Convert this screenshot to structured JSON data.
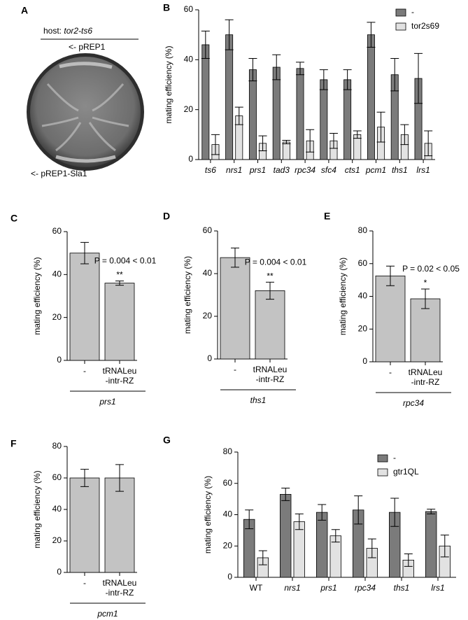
{
  "panel_a": {
    "label": "A",
    "host": "host:",
    "strain": "tor2-ts6",
    "top_label": "<- pREP1",
    "bottom_label": "<- pREP1-Sla1"
  },
  "chart_data": [
    {
      "type": "bar",
      "label": "B",
      "ylabel": "mating efficiency (%)",
      "categories": [
        "ts6",
        "nrs1",
        "prs1",
        "tad3",
        "rpc34",
        "sfc4",
        "cts1",
        "pcm1",
        "ths1",
        "lrs1"
      ],
      "category_italic": [
        true,
        true,
        true,
        true,
        true,
        true,
        true,
        true,
        true,
        true
      ],
      "series": [
        {
          "name": "-",
          "color": "#7b7b7b",
          "values": [
            46,
            50,
            36,
            37,
            36.5,
            32,
            32,
            50,
            34,
            32.5
          ],
          "errors": [
            5.5,
            6,
            4.5,
            5,
            2.5,
            4,
            4,
            5,
            6.5,
            10
          ]
        },
        {
          "name": "tor2s69",
          "color": "#e2e2e2",
          "values": [
            6,
            17.5,
            6.5,
            7,
            7.5,
            7.5,
            10,
            13,
            10,
            6.5
          ],
          "errors": [
            4,
            3.5,
            3,
            0.7,
            4.5,
            3,
            1.5,
            6,
            4,
            5
          ]
        }
      ],
      "ylim": [
        0,
        60
      ],
      "yticks": [
        0,
        20,
        40,
        60
      ],
      "legend": "upper right"
    },
    {
      "type": "bar",
      "label": "C",
      "ylabel": "mating efficiency (%)",
      "categories": [
        "-",
        "tRNALeu\n-intr-RZ"
      ],
      "series": [
        {
          "color": "#c3c3c3",
          "values": [
            50,
            36
          ],
          "errors": [
            5,
            1
          ]
        }
      ],
      "ylim": [
        0,
        60
      ],
      "yticks": [
        0,
        20,
        40,
        60
      ],
      "p_label": "P = 0.004 < 0.01",
      "significance": "**",
      "group_label": "prs1"
    },
    {
      "type": "bar",
      "label": "D",
      "ylabel": "mating efficiency (%)",
      "categories": [
        "-",
        "tRNALeu\n-intr-RZ"
      ],
      "series": [
        {
          "color": "#c3c3c3",
          "values": [
            47.5,
            32
          ],
          "errors": [
            4.5,
            4
          ]
        }
      ],
      "ylim": [
        0,
        60
      ],
      "yticks": [
        0,
        20,
        40,
        60
      ],
      "p_label": "P = 0.004 < 0.01",
      "significance": "**",
      "group_label": "ths1"
    },
    {
      "type": "bar",
      "label": "E",
      "ylabel": "mating efficiency (%)",
      "categories": [
        "-",
        "tRNALeu\n-intr-RZ"
      ],
      "series": [
        {
          "color": "#c3c3c3",
          "values": [
            52.5,
            38.5
          ],
          "errors": [
            6,
            6
          ]
        }
      ],
      "ylim": [
        0,
        80
      ],
      "yticks": [
        0,
        20,
        40,
        60,
        80
      ],
      "p_label": "P = 0.02 < 0.05",
      "significance": "*",
      "group_label": "rpc34"
    },
    {
      "type": "bar",
      "label": "F",
      "ylabel": "mating efficiency (%)",
      "categories": [
        "-",
        "tRNALeu\n-intr-RZ"
      ],
      "series": [
        {
          "color": "#c3c3c3",
          "values": [
            60,
            60
          ],
          "errors": [
            5.5,
            8.5
          ]
        }
      ],
      "ylim": [
        0,
        80
      ],
      "yticks": [
        0,
        20,
        40,
        60,
        80
      ],
      "group_label": "pcm1"
    },
    {
      "type": "bar",
      "label": "G",
      "ylabel": "mating efficiency (%)",
      "categories": [
        "WT",
        "nrs1",
        "prs1",
        "rpc34",
        "ths1",
        "lrs1"
      ],
      "category_italic": [
        false,
        true,
        true,
        true,
        true,
        true
      ],
      "series": [
        {
          "name": "-",
          "color": "#7b7b7b",
          "values": [
            37,
            53,
            41.5,
            43,
            41.5,
            42
          ],
          "errors": [
            6,
            4,
            5,
            9,
            9,
            1.5
          ]
        },
        {
          "name": "gtr1QL",
          "color": "#e2e2e2",
          "values": [
            12.5,
            35.5,
            26.5,
            18.5,
            11,
            20
          ],
          "errors": [
            4.5,
            5,
            4,
            6,
            4,
            7
          ]
        }
      ],
      "ylim": [
        0,
        80
      ],
      "yticks": [
        0,
        20,
        40,
        60,
        80
      ],
      "legend": "upper right"
    }
  ]
}
